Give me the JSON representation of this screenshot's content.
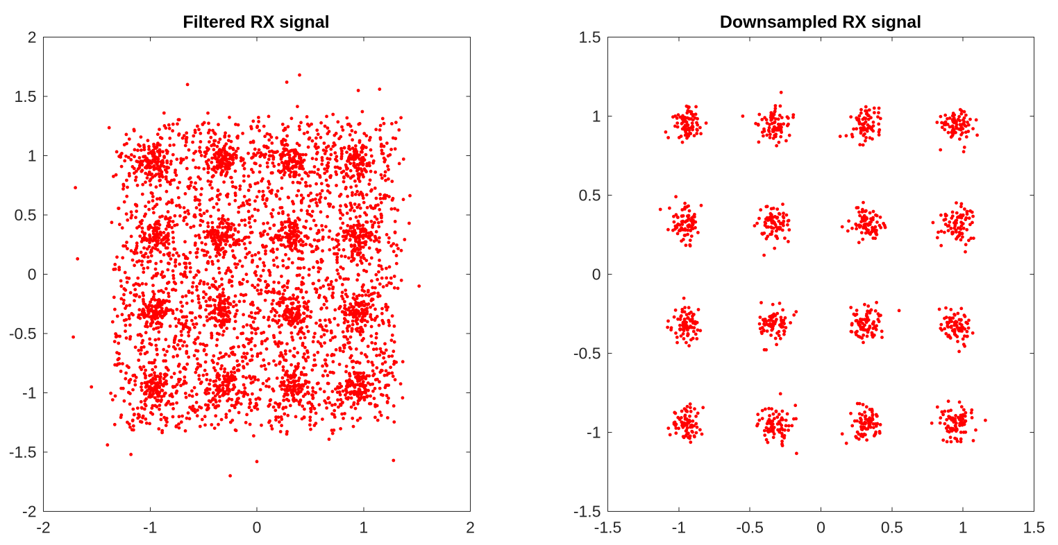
{
  "chart_data": [
    {
      "type": "scatter",
      "title": "Filtered RX signal",
      "xlabel": "",
      "ylabel": "",
      "xlim": [
        -2,
        2
      ],
      "ylim": [
        -2,
        2
      ],
      "xticks": [
        -2,
        -1,
        0,
        1,
        2
      ],
      "xtick_labels": [
        "-2",
        "-1",
        "0",
        "1",
        "2"
      ],
      "yticks": [
        -2,
        -1.5,
        -1,
        -0.5,
        0,
        0.5,
        1,
        1.5,
        2
      ],
      "ytick_labels": [
        "-2",
        "-1.5",
        "-1",
        "-0.5",
        "0",
        "0.5",
        "1",
        "1.5",
        "2"
      ],
      "grid": false,
      "marker_color": "#ff0000",
      "cluster_centers": [
        -0.95,
        -0.32,
        0.32,
        0.95
      ],
      "points_per_cluster": 90,
      "cluster_spread": 0.07,
      "transition_points": 2600,
      "transition_range": [
        -1.3,
        1.3
      ],
      "outlier_points": [
        [
          -1.7,
          0.73
        ],
        [
          -1.68,
          0.13
        ],
        [
          -1.72,
          -0.53
        ],
        [
          -1.55,
          -0.95
        ],
        [
          -1.4,
          -1.44
        ],
        [
          -1.18,
          -1.52
        ],
        [
          -0.65,
          1.6
        ],
        [
          0.4,
          1.68
        ],
        [
          0.28,
          1.62
        ],
        [
          1.35,
          1.32
        ],
        [
          1.52,
          -0.1
        ],
        [
          1.28,
          -1.57
        ],
        [
          0.0,
          -1.58
        ],
        [
          -0.25,
          -1.7
        ],
        [
          1.15,
          1.56
        ],
        [
          0.95,
          1.55
        ]
      ]
    },
    {
      "type": "scatter",
      "title": "Downsampled RX signal",
      "xlabel": "",
      "ylabel": "",
      "xlim": [
        -1.5,
        1.5
      ],
      "ylim": [
        -1.5,
        1.5
      ],
      "xticks": [
        -1.5,
        -1,
        -0.5,
        0,
        0.5,
        1,
        1.5
      ],
      "xtick_labels": [
        "-1.5",
        "-1",
        "-0.5",
        "0",
        "0.5",
        "1",
        "1.5"
      ],
      "yticks": [
        -1.5,
        -1,
        -0.5,
        0,
        0.5,
        1,
        1.5
      ],
      "ytick_labels": [
        "-1.5",
        "-1",
        "-0.5",
        "0",
        "0.5",
        "1",
        "1.5"
      ],
      "grid": false,
      "marker_color": "#ff0000",
      "cluster_centers": [
        -0.95,
        -0.32,
        0.32,
        0.95
      ],
      "points_per_cluster": 80,
      "cluster_spread": 0.055,
      "outlier_points": [
        [
          -1.13,
          0.41
        ],
        [
          -0.28,
          1.15
        ],
        [
          -0.55,
          1.0
        ],
        [
          0.55,
          -0.23
        ],
        [
          -0.42,
          -0.18
        ],
        [
          -0.18,
          -0.83
        ],
        [
          0.15,
          -1.01
        ],
        [
          1.1,
          0.88
        ],
        [
          0.82,
          -0.84
        ],
        [
          -0.92,
          0.18
        ],
        [
          -0.4,
          0.12
        ],
        [
          0.15,
          0.3
        ]
      ]
    }
  ]
}
